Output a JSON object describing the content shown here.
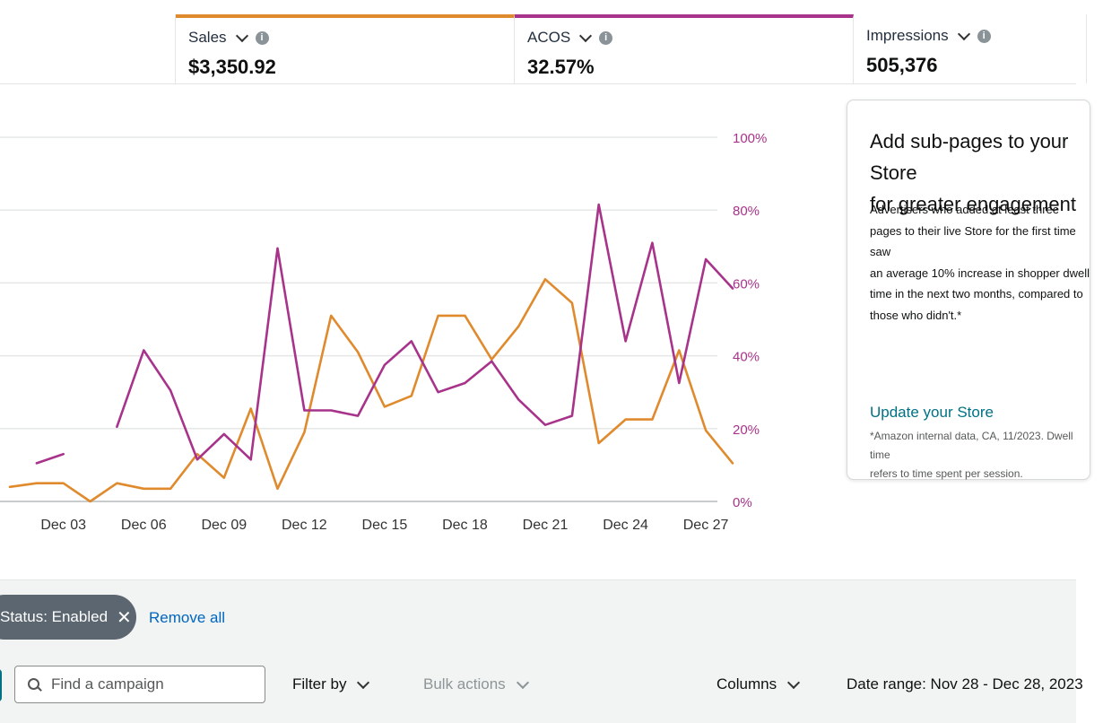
{
  "metrics": [
    {
      "label": "Sales",
      "value": "$3,350.92",
      "color": "#e08a2e"
    },
    {
      "label": "ACOS",
      "value": "32.57%",
      "color": "#a7338a"
    },
    {
      "label": "Impressions",
      "value": "505,376"
    }
  ],
  "chart_data": {
    "type": "line",
    "x": [
      1,
      2,
      3,
      4,
      5,
      6,
      7,
      8,
      9,
      10,
      11,
      12,
      13,
      14,
      15,
      16,
      17,
      18,
      19,
      20,
      21,
      22,
      23,
      24,
      25,
      26,
      27,
      28
    ],
    "x_ticks": [
      {
        "label": "Dec 03",
        "value": 3
      },
      {
        "label": "Dec 06",
        "value": 6
      },
      {
        "label": "Dec 09",
        "value": 9
      },
      {
        "label": "Dec 12",
        "value": 12
      },
      {
        "label": "Dec 15",
        "value": 15
      },
      {
        "label": "Dec 18",
        "value": 18
      },
      {
        "label": "Dec 21",
        "value": 21
      },
      {
        "label": "Dec 24",
        "value": 24
      },
      {
        "label": "Dec 27",
        "value": 27
      }
    ],
    "y_ticks_right": [
      "0%",
      "20%",
      "40%",
      "60%",
      "80%",
      "100%"
    ],
    "ylim": [
      0,
      100
    ],
    "grid": true,
    "series": [
      {
        "name": "Sales",
        "color": "#e08a2e",
        "values": [
          4,
          5,
          5,
          0,
          5,
          3.5,
          3.5,
          13,
          6.5,
          25.5,
          3.5,
          19,
          51,
          41,
          26,
          29,
          51,
          51,
          39,
          48,
          61,
          54.5,
          16,
          22.5,
          22.5,
          41.5,
          19.5,
          10.5
        ]
      },
      {
        "name": "ACOS",
        "color": "#a7338a",
        "values": [
          null,
          10.5,
          13,
          null,
          20.5,
          41.5,
          30.5,
          11.5,
          18.5,
          11.5,
          69.5,
          25,
          25,
          23.5,
          37.5,
          44,
          30,
          32.5,
          38.5,
          28,
          21,
          23.5,
          81.5,
          44,
          71,
          32.5,
          66.5,
          58.5
        ]
      }
    ]
  },
  "promo": {
    "title": "Add sub-pages to your Store\nfor greater engagement",
    "body": "Advertisers who added at least three\npages to their live Store for the first time saw\nan average 10% increase in shopper dwell\ntime in the next two months, compared to\nthose who didn't.*",
    "link": "Update your Store",
    "footnote": "*Amazon internal data, CA, 11/2023. Dwell time\nrefers to time spent per session."
  },
  "filters": {
    "chip_label": "Status: Enabled",
    "chip_close": "✕",
    "remove_all": "Remove all",
    "search_placeholder": "Find a campaign",
    "filter_by": "Filter by",
    "bulk_actions": "Bulk actions",
    "columns": "Columns",
    "date_range": "Date range: Nov 28 - Dec 28, 2023"
  }
}
